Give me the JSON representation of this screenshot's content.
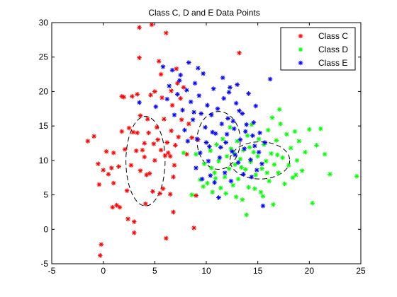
{
  "chart_data": {
    "type": "scatter",
    "title": "Class C, D and E Data Points",
    "xlabel": "",
    "ylabel": "",
    "xlim": [
      -5,
      25
    ],
    "ylim": [
      -5,
      30
    ],
    "xticks": [
      "-5",
      "0",
      "5",
      "10",
      "15",
      "20",
      "25"
    ],
    "yticks": [
      "-5",
      "0",
      "5",
      "10",
      "15",
      "20",
      "25",
      "30"
    ],
    "grid": false,
    "legend_position": "top-right",
    "marker": "asterisk",
    "series": [
      {
        "name": "Class C",
        "color": "#ff0000",
        "points": [
          [
            -1.5,
            12.8
          ],
          [
            -0.9,
            13.5
          ],
          [
            -0.5,
            9.5
          ],
          [
            -0.4,
            6.5
          ],
          [
            -0.2,
            -2.2
          ],
          [
            -0.3,
            -3.8
          ],
          [
            0.0,
            8.6
          ],
          [
            0.3,
            11.3
          ],
          [
            0.5,
            8.0
          ],
          [
            0.8,
            8.9
          ],
          [
            1.0,
            6.7
          ],
          [
            1.0,
            11.1
          ],
          [
            0.9,
            3.2
          ],
          [
            1.3,
            3.5
          ],
          [
            1.5,
            9.1
          ],
          [
            1.6,
            3.2
          ],
          [
            1.8,
            14.2
          ],
          [
            1.8,
            19.3
          ],
          [
            2.0,
            19.2
          ],
          [
            2.1,
            11.6
          ],
          [
            2.3,
            5.6
          ],
          [
            2.4,
            1.5
          ],
          [
            2.5,
            14.7
          ],
          [
            2.7,
            9.3
          ],
          [
            2.8,
            19.3
          ],
          [
            2.9,
            14.1
          ],
          [
            3.0,
            -0.5
          ],
          [
            3.0,
            1.1
          ],
          [
            3.2,
            11.4
          ],
          [
            3.3,
            14.0
          ],
          [
            3.3,
            19.6
          ],
          [
            3.5,
            24.9
          ],
          [
            3.5,
            29.3
          ],
          [
            3.6,
            8.5
          ],
          [
            3.6,
            16.5
          ],
          [
            3.8,
            11.5
          ],
          [
            4.0,
            10.5
          ],
          [
            4.0,
            12.5
          ],
          [
            4.1,
            3.7
          ],
          [
            4.2,
            7.9
          ],
          [
            4.3,
            16.0
          ],
          [
            4.4,
            14.0
          ],
          [
            4.5,
            8.1
          ],
          [
            4.6,
            19.5
          ],
          [
            4.7,
            29.7
          ],
          [
            4.8,
            5.5
          ],
          [
            4.9,
            12.4
          ],
          [
            5.0,
            10.0
          ],
          [
            5.0,
            20.0
          ],
          [
            5.2,
            14.8
          ],
          [
            5.3,
            13.0
          ],
          [
            5.4,
            24.4
          ],
          [
            5.5,
            5.2
          ],
          [
            5.6,
            11.5
          ],
          [
            5.7,
            19.1
          ],
          [
            5.8,
            5.9
          ],
          [
            5.9,
            16.0
          ],
          [
            6.0,
            10.7
          ],
          [
            6.1,
            28.5
          ],
          [
            6.2,
            12.6
          ],
          [
            6.3,
            11.1
          ],
          [
            6.5,
            10.6
          ],
          [
            6.6,
            14.3
          ],
          [
            6.7,
            18.0
          ],
          [
            6.8,
            7.6
          ],
          [
            6.9,
            9.3
          ],
          [
            6.8,
            2.5
          ],
          [
            6.5,
            5.1
          ],
          [
            7.0,
            12.2
          ],
          [
            7.1,
            23.3
          ],
          [
            7.2,
            21.2
          ],
          [
            7.3,
            13.4
          ],
          [
            7.5,
            19.0
          ],
          [
            7.6,
            15.9
          ],
          [
            7.8,
            20.6
          ],
          [
            8.1,
            10.9
          ],
          [
            8.3,
            15.3
          ],
          [
            8.6,
            13.3
          ],
          [
            9.0,
            4.9
          ],
          [
            9.2,
            13.0
          ],
          [
            8.8,
            0.2
          ],
          [
            6.1,
            -1.3
          ],
          [
            6.6,
            20.1
          ],
          [
            5.6,
            22.5
          ],
          [
            13.2,
            25.6
          ]
        ]
      },
      {
        "name": "Class D",
        "color": "#00ff00",
        "points": [
          [
            7.8,
            11.1
          ],
          [
            8.6,
            5.0
          ],
          [
            9.0,
            10.9
          ],
          [
            9.4,
            7.2
          ],
          [
            9.8,
            9.5
          ],
          [
            10.1,
            6.7
          ],
          [
            10.4,
            11.4
          ],
          [
            10.6,
            5.4
          ],
          [
            10.8,
            8.2
          ],
          [
            11.0,
            12.3
          ],
          [
            11.2,
            9.9
          ],
          [
            11.4,
            6.0
          ],
          [
            11.6,
            13.1
          ],
          [
            11.8,
            7.6
          ],
          [
            12.0,
            10.6
          ],
          [
            12.2,
            8.8
          ],
          [
            12.4,
            11.7
          ],
          [
            12.6,
            6.4
          ],
          [
            12.8,
            9.4
          ],
          [
            13.0,
            12.8
          ],
          [
            13.1,
            7.3
          ],
          [
            13.3,
            10.2
          ],
          [
            13.5,
            4.3
          ],
          [
            13.6,
            11.5
          ],
          [
            13.8,
            8.7
          ],
          [
            14.0,
            13.6
          ],
          [
            14.1,
            6.1
          ],
          [
            14.3,
            9.8
          ],
          [
            14.4,
            15.2
          ],
          [
            14.6,
            11.2
          ],
          [
            14.8,
            7.9
          ],
          [
            15.0,
            10.6
          ],
          [
            15.1,
            13.1
          ],
          [
            15.3,
            5.4
          ],
          [
            15.4,
            8.8
          ],
          [
            15.6,
            12.3
          ],
          [
            15.8,
            9.9
          ],
          [
            16.0,
            14.4
          ],
          [
            16.1,
            7.0
          ],
          [
            16.3,
            11.0
          ],
          [
            16.5,
            3.6
          ],
          [
            16.6,
            9.4
          ],
          [
            16.8,
            12.9
          ],
          [
            17.0,
            8.2
          ],
          [
            17.2,
            15.3
          ],
          [
            17.4,
            10.4
          ],
          [
            17.6,
            6.6
          ],
          [
            17.8,
            13.8
          ],
          [
            18.0,
            9.3
          ],
          [
            18.2,
            11.8
          ],
          [
            18.4,
            7.5
          ],
          [
            18.6,
            14.2
          ],
          [
            18.8,
            10.0
          ],
          [
            19.0,
            12.8
          ],
          [
            19.3,
            8.5
          ],
          [
            19.6,
            11.2
          ],
          [
            20.0,
            14.5
          ],
          [
            20.3,
            3.8
          ],
          [
            20.7,
            12.2
          ],
          [
            21.1,
            14.6
          ],
          [
            21.5,
            10.9
          ],
          [
            24.6,
            7.7
          ],
          [
            22.0,
            8.0
          ],
          [
            10.5,
            8.9
          ],
          [
            11.9,
            5.2
          ],
          [
            12.9,
            4.7
          ],
          [
            13.9,
            2.1
          ],
          [
            14.7,
            5.9
          ],
          [
            15.5,
            4.8
          ],
          [
            16.4,
            16.2
          ],
          [
            17.1,
            17.4
          ],
          [
            12.3,
            14.8
          ],
          [
            9.7,
            6.2
          ],
          [
            10.9,
            7.4
          ],
          [
            13.4,
            9.0
          ],
          [
            15.9,
            8.2
          ],
          [
            14.2,
            11.9
          ],
          [
            16.9,
            10.8
          ],
          [
            18.7,
            7.9
          ],
          [
            12.7,
            11.0
          ]
        ]
      },
      {
        "name": "Class E",
        "color": "#0000ff",
        "points": [
          [
            3.5,
            18.4
          ],
          [
            5.1,
            17.8
          ],
          [
            5.8,
            23.6
          ],
          [
            6.4,
            20.8
          ],
          [
            6.7,
            23.1
          ],
          [
            6.9,
            16.6
          ],
          [
            7.2,
            19.6
          ],
          [
            7.5,
            22.4
          ],
          [
            7.7,
            17.3
          ],
          [
            7.9,
            14.4
          ],
          [
            8.1,
            20.2
          ],
          [
            8.3,
            24.2
          ],
          [
            8.5,
            18.5
          ],
          [
            8.7,
            15.9
          ],
          [
            8.9,
            21.2
          ],
          [
            9.1,
            13.1
          ],
          [
            9.3,
            19.4
          ],
          [
            9.5,
            16.8
          ],
          [
            9.7,
            22.6
          ],
          [
            9.9,
            14.8
          ],
          [
            10.1,
            18.0
          ],
          [
            10.3,
            12.0
          ],
          [
            10.5,
            16.6
          ],
          [
            10.7,
            20.4
          ],
          [
            10.9,
            13.9
          ],
          [
            11.1,
            17.5
          ],
          [
            11.3,
            10.4
          ],
          [
            11.5,
            15.3
          ],
          [
            11.7,
            19.0
          ],
          [
            11.9,
            12.6
          ],
          [
            12.1,
            16.1
          ],
          [
            12.3,
            20.6
          ],
          [
            12.5,
            11.3
          ],
          [
            12.7,
            14.6
          ],
          [
            12.9,
            18.3
          ],
          [
            13.1,
            9.7
          ],
          [
            13.3,
            13.0
          ],
          [
            13.5,
            16.8
          ],
          [
            13.7,
            11.7
          ],
          [
            13.9,
            15.2
          ],
          [
            14.1,
            19.7
          ],
          [
            14.3,
            10.1
          ],
          [
            14.5,
            13.6
          ],
          [
            14.7,
            12.1
          ],
          [
            14.9,
            8.6
          ],
          [
            15.1,
            11.2
          ],
          [
            15.4,
            9.5
          ],
          [
            15.7,
            12.6
          ],
          [
            16.2,
            21.8
          ],
          [
            15.5,
            3.4
          ],
          [
            9.0,
            8.9
          ],
          [
            9.6,
            7.3
          ],
          [
            10.2,
            9.9
          ],
          [
            10.8,
            6.8
          ],
          [
            11.2,
            4.6
          ],
          [
            11.8,
            8.2
          ],
          [
            12.4,
            7.0
          ],
          [
            12.8,
            10.8
          ],
          [
            13.6,
            8.0
          ],
          [
            14.4,
            7.6
          ],
          [
            9.4,
            11.1
          ],
          [
            10.0,
            12.6
          ],
          [
            10.6,
            14.1
          ],
          [
            11.4,
            11.9
          ],
          [
            12.0,
            13.8
          ],
          [
            12.6,
            15.7
          ],
          [
            13.2,
            17.2
          ],
          [
            13.8,
            14.2
          ],
          [
            14.6,
            15.5
          ],
          [
            15.2,
            14.0
          ],
          [
            8.2,
            12.8
          ],
          [
            8.8,
            17.0
          ],
          [
            9.2,
            23.4
          ],
          [
            7.4,
            21.6
          ],
          [
            6.2,
            18.9
          ],
          [
            11.6,
            22.0
          ],
          [
            12.2,
            19.9
          ],
          [
            13.0,
            21.0
          ],
          [
            14.8,
            17.9
          ],
          [
            10.4,
            7.8
          ]
        ]
      }
    ],
    "annotations": [
      {
        "type": "ellipse",
        "style": "dashed",
        "color": "#000000",
        "cx": 4.1,
        "cy": 9.9,
        "rx": 1.9,
        "ry": 6.5
      },
      {
        "type": "ellipse",
        "style": "dashed",
        "color": "#000000",
        "cx": 11.2,
        "cy": 12.9,
        "rx": 2.1,
        "ry": 4.2
      },
      {
        "type": "ellipse",
        "style": "dashed",
        "color": "#000000",
        "cx": 15.2,
        "cy": 10.0,
        "rx": 2.9,
        "ry": 2.7
      }
    ]
  }
}
